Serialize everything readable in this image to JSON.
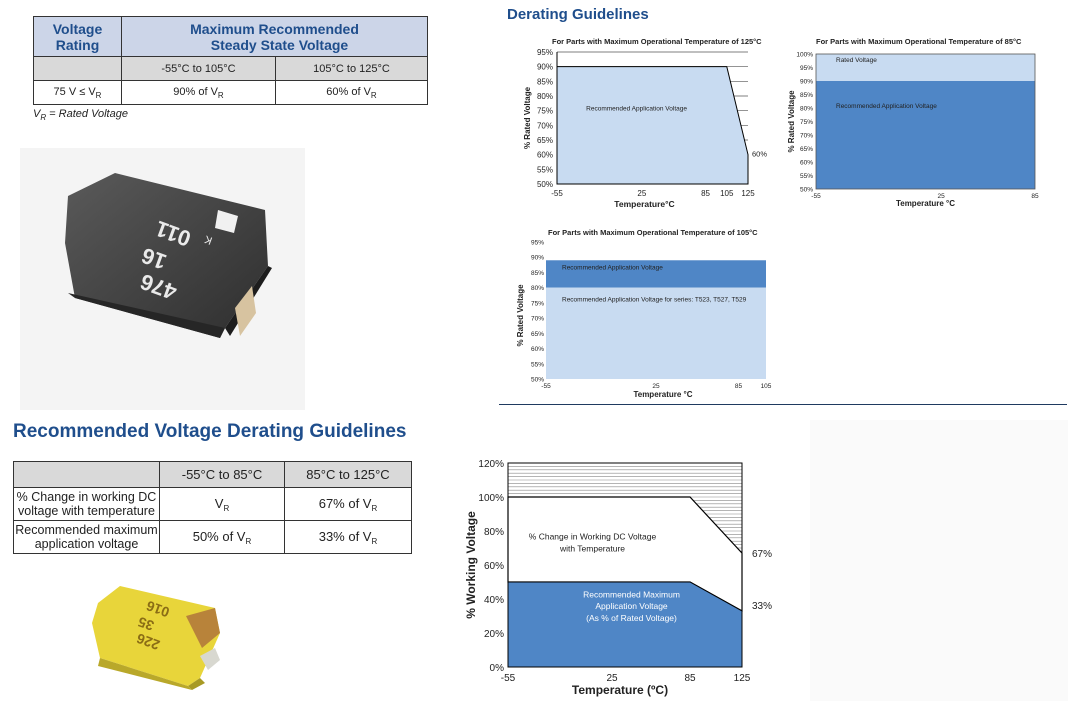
{
  "table1": {
    "header_voltage": "Voltage",
    "header_rating": "Rating",
    "header_max1": "Maximum Recommended",
    "header_max2": "Steady State Voltage",
    "col1": "-55°C to 105°C",
    "col2": "105°C to 125°C",
    "row_label": "75 V ≤ V",
    "row_label_sub": "R",
    "val1": "90% of V",
    "val2": "60% of V",
    "sub_r": "R",
    "footnote": "V",
    "footnote_sub": "R",
    "footnote_rest": " = Rated Voltage"
  },
  "derating_title": "Derating Guidelines",
  "rec_title": "Recommended Voltage Derating Guidelines",
  "table2": {
    "col1": "-55°C to 85°C",
    "col2": "85°C to 125°C",
    "row1_label1": "% Change in working DC",
    "row1_label2": "voltage with temperature",
    "row1_val1": "V",
    "row1_val2": "67% of V",
    "row2_label1": "Recommended maximum",
    "row2_label2": "application voltage",
    "row2_val1": "50% of V",
    "row2_val2": "33% of V",
    "sub_r": "R"
  },
  "capacitor1": {
    "line1": "476",
    "line2": "16",
    "line3": "011",
    "logo": "K"
  },
  "capacitor2": {
    "line1": "226",
    "line2": "35",
    "line3": "016",
    "logo": "K"
  },
  "chart_data": [
    {
      "type": "area",
      "title": "For Parts with Maximum Operational Temperature of 125°C",
      "xlabel": "Temperature°C",
      "ylabel": "% Rated Voltage",
      "x_ticks": [
        "-55",
        "25",
        "85",
        "105",
        "125"
      ],
      "y_ticks": [
        "50%",
        "55%",
        "60%",
        "65%",
        "70%",
        "75%",
        "80%",
        "85%",
        "90%",
        "95%"
      ],
      "ylim": [
        50,
        95
      ],
      "series": [
        {
          "name": "Recommended Application Voltage",
          "x": [
            -55,
            105,
            125
          ],
          "values": [
            90,
            90,
            60
          ]
        }
      ],
      "end_label": "60%"
    },
    {
      "type": "area",
      "title": "For Parts with Maximum Operational Temperature of 85°C",
      "xlabel": "Temperature °C",
      "ylabel": "% Rated Voltage",
      "x_ticks": [
        "-55",
        "25",
        "85"
      ],
      "y_ticks": [
        "50%",
        "55%",
        "60%",
        "65%",
        "70%",
        "75%",
        "80%",
        "85%",
        "90%",
        "95%",
        "100%"
      ],
      "ylim": [
        50,
        100
      ],
      "series": [
        {
          "name": "Rated Voltage",
          "x": [
            -55,
            85
          ],
          "values": [
            100,
            100
          ]
        },
        {
          "name": "Recommended Application Voltage",
          "x": [
            -55,
            85
          ],
          "values": [
            90,
            90
          ]
        }
      ]
    },
    {
      "type": "area",
      "title": "For Parts with Maximum Operational Temperature of 105°C",
      "xlabel": "Temperature °C",
      "ylabel": "% Rated Voltage",
      "x_ticks": [
        "-55",
        "25",
        "85",
        "105"
      ],
      "y_ticks": [
        "50%",
        "55%",
        "60%",
        "65%",
        "70%",
        "75%",
        "80%",
        "85%",
        "90%",
        "95%"
      ],
      "ylim": [
        50,
        95
      ],
      "series": [
        {
          "name": "Recommended Application Voltage",
          "x": [
            -55,
            105
          ],
          "values": [
            89,
            89
          ]
        },
        {
          "name": "Recommended Application Voltage for series: T523, T527, T529",
          "x": [
            -55,
            105
          ],
          "values": [
            80,
            80
          ]
        }
      ]
    },
    {
      "type": "area",
      "xlabel": "Temperature (ºC)",
      "ylabel": "% Working Voltage",
      "x_ticks": [
        "-55",
        "25",
        "85",
        "125"
      ],
      "y_ticks": [
        "0%",
        "20%",
        "40%",
        "60%",
        "80%",
        "100%",
        "120%"
      ],
      "ylim": [
        0,
        120
      ],
      "series": [
        {
          "name": "% Change in Working DC Voltage with Temperature",
          "x": [
            -55,
            85,
            125
          ],
          "values": [
            100,
            100,
            67
          ]
        },
        {
          "name": "Recommended Maximum Application Voltage (As % of Rated Voltage)",
          "x": [
            -55,
            85,
            125
          ],
          "values": [
            50,
            50,
            33
          ]
        }
      ],
      "labels": [
        "67%",
        "33%"
      ],
      "series_label_lines": [
        "% Change in Working DC Voltage",
        "with Temperature",
        "Recommended Maximum",
        "Application Voltage",
        "(As % of Rated Voltage)"
      ]
    }
  ]
}
